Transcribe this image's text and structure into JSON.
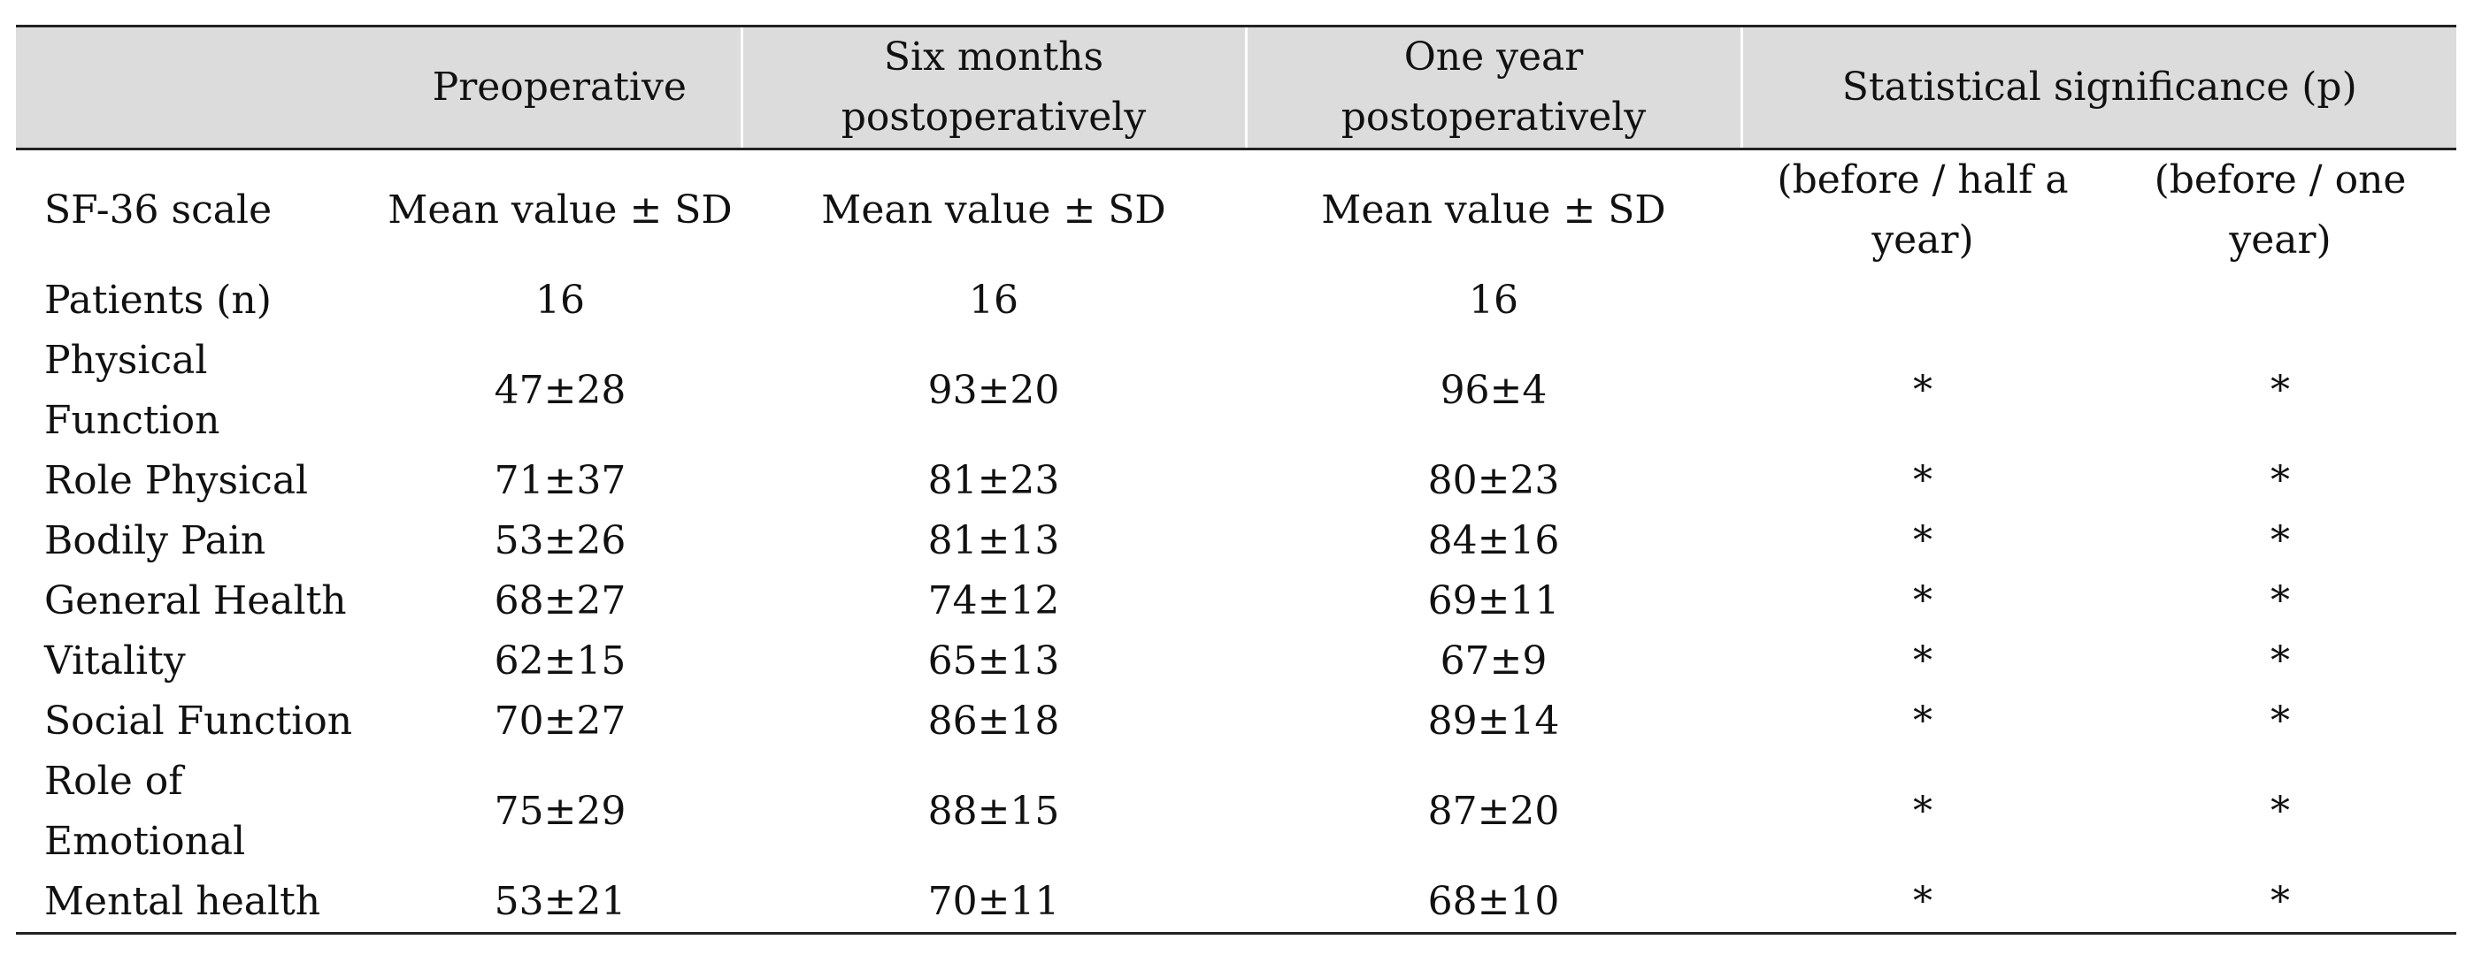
{
  "table": {
    "headers": {
      "blank": "",
      "preoperative": "Preoperative",
      "six_months": "Six months postoperatively",
      "one_year": "One year postoperatively",
      "significance": "Statistical significance (p)"
    },
    "subheader": {
      "scale": "SF-36 scale",
      "pre": "Mean value ± SD",
      "six": "Mean value ± SD",
      "year": "Mean value ± SD",
      "sig_half": "(before / half a year)",
      "sig_one": "(before / one year)"
    },
    "patients": {
      "label": "Patients (n)",
      "pre": "16",
      "six": "16",
      "year": "16"
    },
    "rows": [
      {
        "label": "Physical Function",
        "pre": "47±28",
        "six": "93±20",
        "year": "96±4",
        "sig_half": "*",
        "sig_one": "*"
      },
      {
        "label": "Role Physical",
        "pre": "71±37",
        "six": "81±23",
        "year": "80±23",
        "sig_half": "*",
        "sig_one": "*"
      },
      {
        "label": "Bodily Pain",
        "pre": "53±26",
        "six": "81±13",
        "year": "84±16",
        "sig_half": "*",
        "sig_one": "*"
      },
      {
        "label": "General Health",
        "pre": "68±27",
        "six": "74±12",
        "year": "69±11",
        "sig_half": "*",
        "sig_one": "*"
      },
      {
        "label": "Vitality",
        "pre": "62±15",
        "six": "65±13",
        "year": "67±9",
        "sig_half": "*",
        "sig_one": "*"
      },
      {
        "label": "Social Function",
        "pre": "70±27",
        "six": "86±18",
        "year": "89±14",
        "sig_half": "*",
        "sig_one": "*"
      },
      {
        "label": "Role of Emotional",
        "pre": "75±29",
        "six": "88±15",
        "year": "87±20",
        "sig_half": "*",
        "sig_one": "*"
      },
      {
        "label": "Mental health",
        "pre": "53±21",
        "six": "70±11",
        "year": "68±10",
        "sig_half": "*",
        "sig_one": "*"
      }
    ]
  }
}
